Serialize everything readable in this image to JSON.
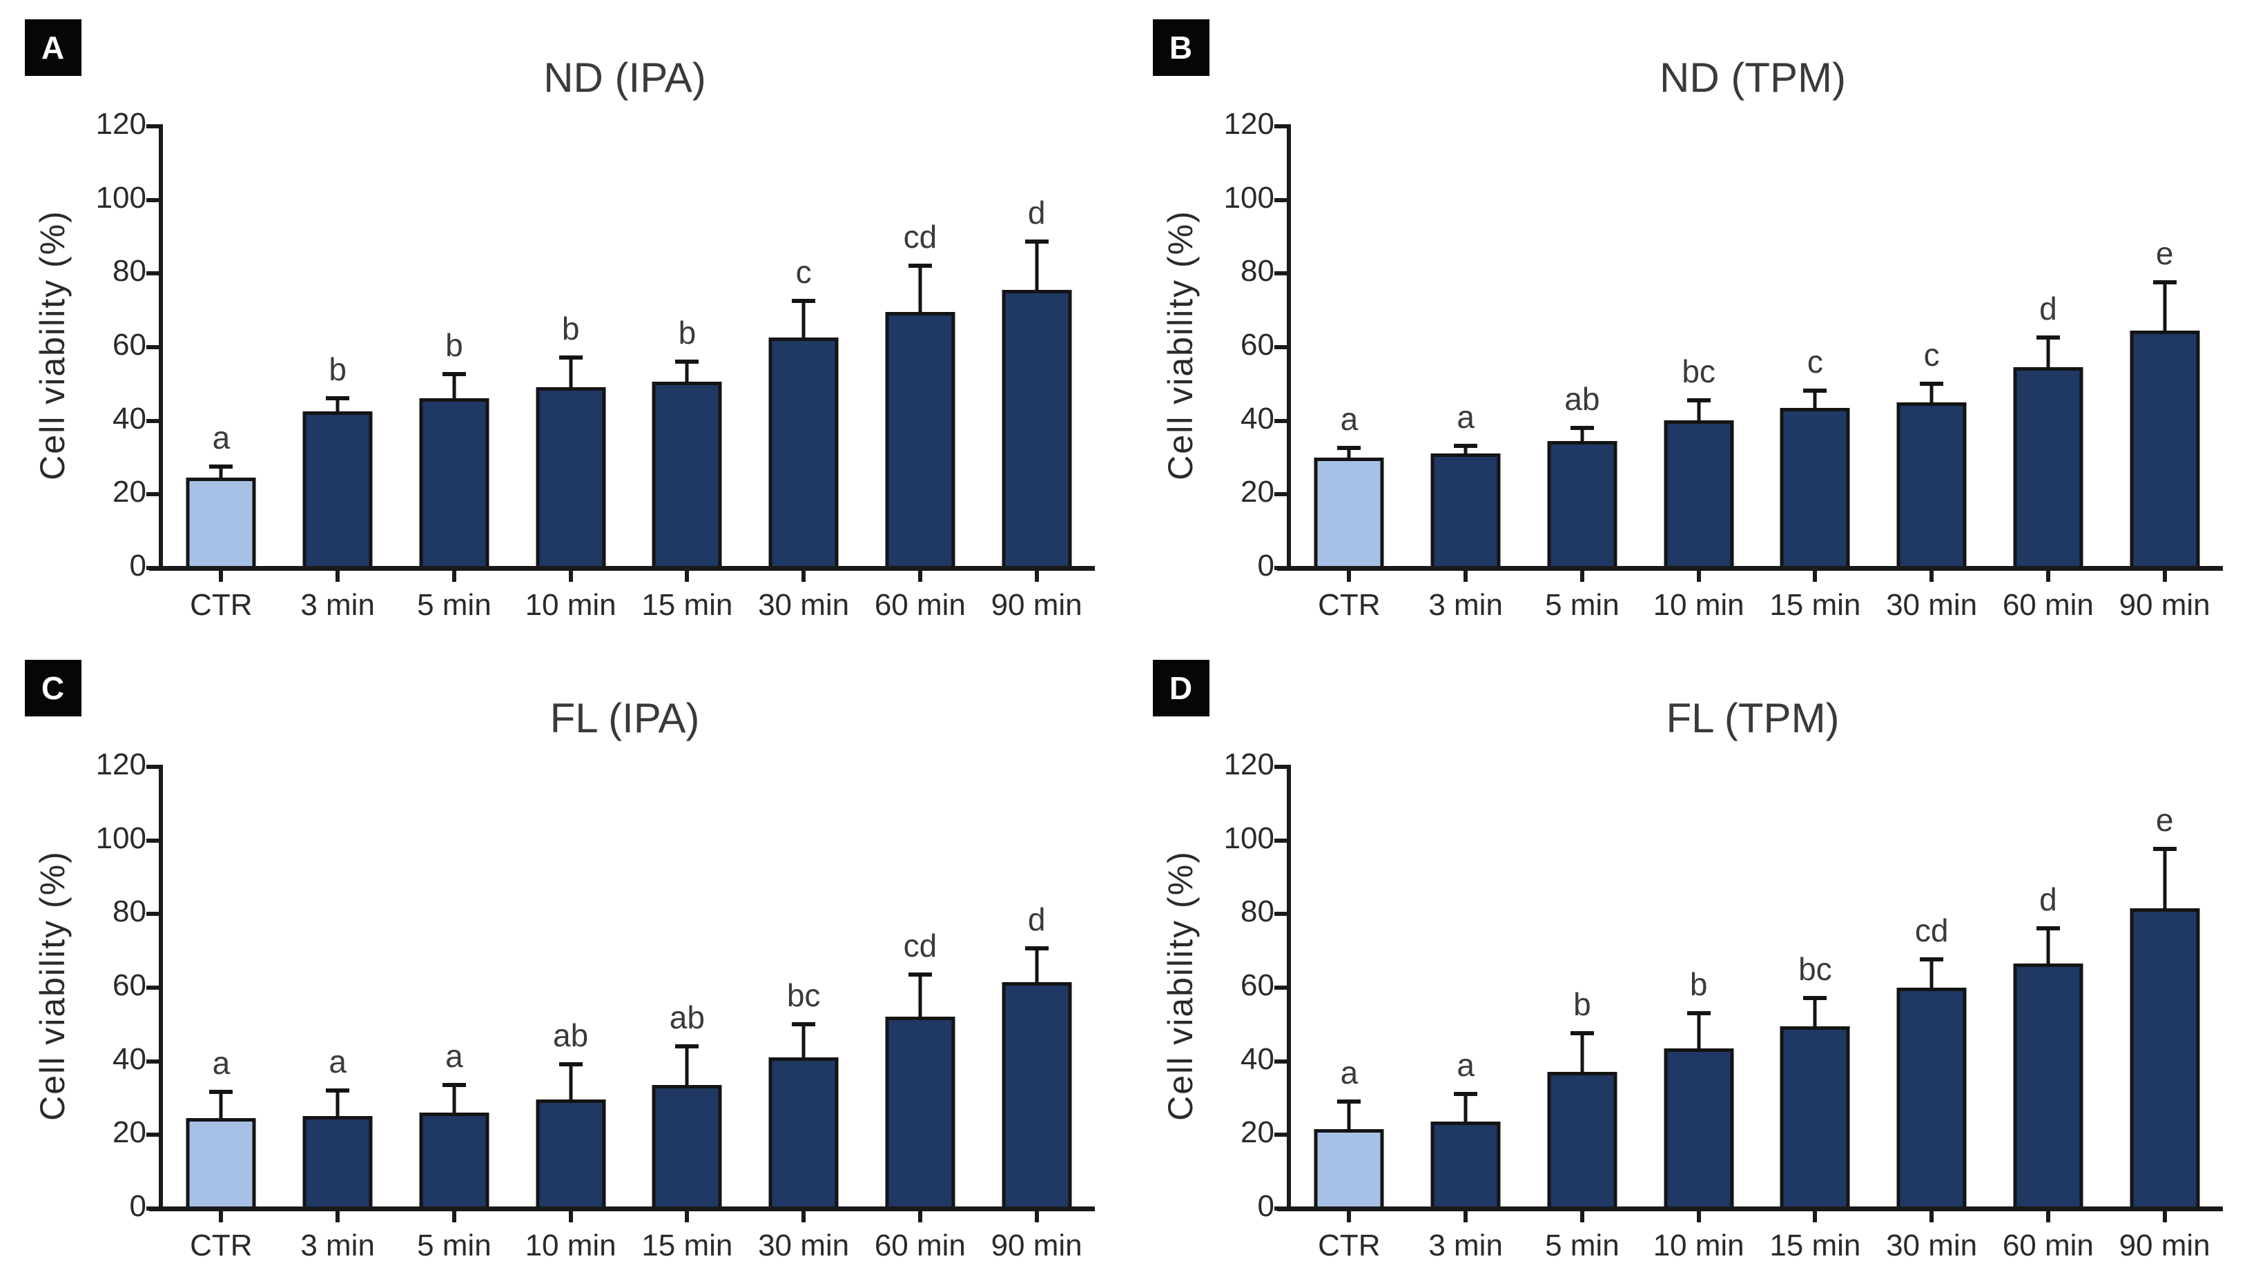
{
  "figure": {
    "colors": {
      "control_bar": "#a7c0e6",
      "treatment_bar": "#1f3864",
      "bar_border": "#141414",
      "axis": "#1a1a1a",
      "text": "#2a2a2a",
      "badge_bg": "#060606",
      "badge_text": "#ffffff"
    }
  },
  "chart_data": [
    {
      "type": "bar",
      "panel_label": "A",
      "title": "ND (IPA)",
      "ylabel": "Cell viability (%)",
      "xlabel": "",
      "ylim": [
        0,
        120
      ],
      "yticks": [
        0,
        20,
        40,
        60,
        80,
        100,
        120
      ],
      "grid": false,
      "legend": "none",
      "categories": [
        "CTR",
        "3 min",
        "5 min",
        "10 min",
        "15 min",
        "30 min",
        "60 min",
        "90 min"
      ],
      "values": [
        24,
        42,
        45.5,
        48.5,
        50,
        62,
        69,
        75
      ],
      "errors": [
        2.5,
        3,
        6,
        7.5,
        5,
        9.5,
        12,
        12.5
      ],
      "sig_letters": [
        "a",
        "b",
        "b",
        "b",
        "b",
        "c",
        "cd",
        "d"
      ],
      "control_index": 0
    },
    {
      "type": "bar",
      "panel_label": "B",
      "title": "ND (TPM)",
      "ylabel": "Cell viability (%)",
      "xlabel": "",
      "ylim": [
        0,
        120
      ],
      "yticks": [
        0,
        20,
        40,
        60,
        80,
        100,
        120
      ],
      "grid": false,
      "legend": "none",
      "categories": [
        "CTR",
        "3 min",
        "5 min",
        "10 min",
        "15 min",
        "30 min",
        "60 min",
        "90 min"
      ],
      "values": [
        29.5,
        30.5,
        34,
        39.5,
        43,
        44.5,
        54,
        64
      ],
      "errors": [
        2,
        1.5,
        3,
        5,
        4,
        4.5,
        7.5,
        12.5
      ],
      "sig_letters": [
        "a",
        "a",
        "ab",
        "bc",
        "c",
        "c",
        "d",
        "e"
      ],
      "control_index": 0
    },
    {
      "type": "bar",
      "panel_label": "C",
      "title": "FL (IPA)",
      "ylabel": "Cell viability (%)",
      "xlabel": "",
      "ylim": [
        0,
        120
      ],
      "yticks": [
        0,
        20,
        40,
        60,
        80,
        100,
        120
      ],
      "grid": false,
      "legend": "none",
      "categories": [
        "CTR",
        "3 min",
        "5 min",
        "10 min",
        "15 min",
        "30 min",
        "60 min",
        "90 min"
      ],
      "values": [
        24,
        24.5,
        25.5,
        29,
        33,
        40.5,
        51.5,
        61
      ],
      "errors": [
        6.5,
        6.5,
        7,
        9,
        10,
        8.5,
        11,
        8.5
      ],
      "sig_letters": [
        "a",
        "a",
        "a",
        "ab",
        "ab",
        "bc",
        "cd",
        "d"
      ],
      "control_index": 0
    },
    {
      "type": "bar",
      "panel_label": "D",
      "title": "FL (TPM)",
      "ylabel": "Cell viability (%)",
      "xlabel": "",
      "ylim": [
        0,
        120
      ],
      "yticks": [
        0,
        20,
        40,
        60,
        80,
        100,
        120
      ],
      "grid": false,
      "legend": "none",
      "categories": [
        "CTR",
        "3 min",
        "5 min",
        "10 min",
        "15 min",
        "30 min",
        "60 min",
        "90 min"
      ],
      "values": [
        21,
        23,
        36.5,
        43,
        49,
        59.5,
        66,
        81
      ],
      "errors": [
        7,
        7,
        10,
        9,
        7,
        7,
        9,
        15.5
      ],
      "sig_letters": [
        "a",
        "a",
        "b",
        "b",
        "bc",
        "cd",
        "d",
        "e"
      ],
      "control_index": 0
    }
  ]
}
